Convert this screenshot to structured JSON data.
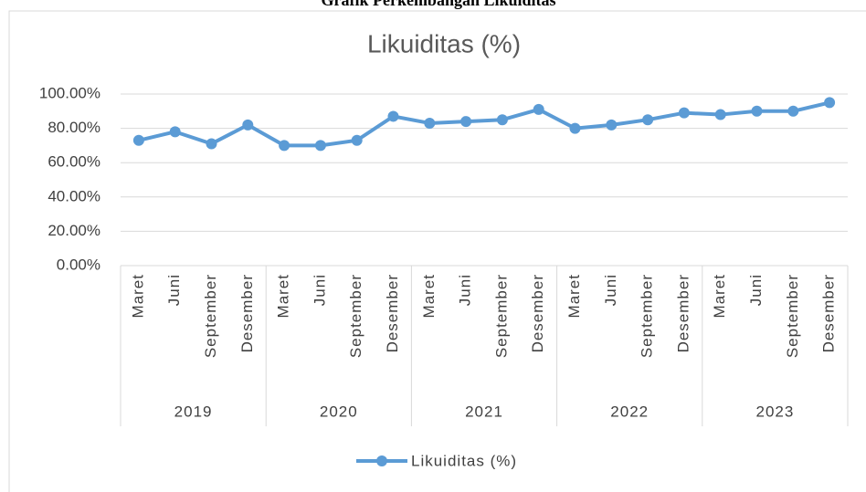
{
  "page_title": "Grafik Perkembangan Likuiditas",
  "chart_data": {
    "type": "line",
    "title": "Likuiditas (%)",
    "categories": [
      "Maret",
      "Juni",
      "September",
      "Desember",
      "Maret",
      "Juni",
      "September",
      "Desember",
      "Maret",
      "Juni",
      "September",
      "Desember",
      "Maret",
      "Juni",
      "September",
      "Desember",
      "Maret",
      "Juni",
      "September",
      "Desember"
    ],
    "groups": [
      "2019",
      "2020",
      "2021",
      "2022",
      "2023"
    ],
    "series": [
      {
        "name": "Likuiditas (%)",
        "color": "#5b9bd5",
        "values": [
          73,
          78,
          71,
          82,
          70,
          70,
          73,
          87,
          83,
          84,
          85,
          91,
          80,
          82,
          85,
          89,
          88,
          90,
          90,
          95
        ]
      }
    ],
    "ylim": [
      0,
      100
    ],
    "yticks": [
      {
        "value": 0,
        "label": "0.00%"
      },
      {
        "value": 20,
        "label": "20.00%"
      },
      {
        "value": 40,
        "label": "40.00%"
      },
      {
        "value": 60,
        "label": "60.00%"
      },
      {
        "value": 80,
        "label": "80.00%"
      },
      {
        "value": 100,
        "label": "100.00%"
      }
    ],
    "grid": true,
    "legend": "bottom"
  }
}
